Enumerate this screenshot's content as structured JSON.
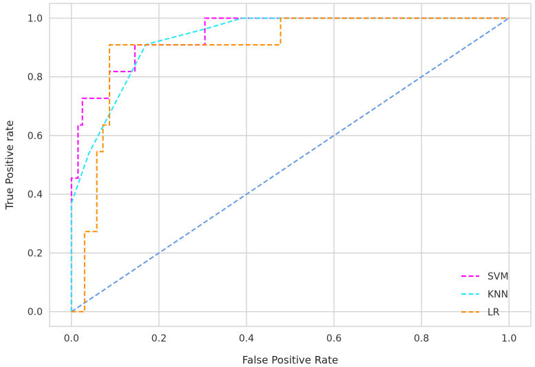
{
  "chart_data": {
    "type": "line",
    "title": "",
    "xlabel": "False Positive Rate",
    "ylabel": "True Positive rate",
    "xlim": [
      -0.05,
      1.05
    ],
    "ylim": [
      -0.05,
      1.05
    ],
    "xticks": [
      "0.0",
      "0.2",
      "0.4",
      "0.6",
      "0.8",
      "1.0"
    ],
    "yticks": [
      "0.0",
      "0.2",
      "0.4",
      "0.6",
      "0.8",
      "1.0"
    ],
    "grid": true,
    "legend_position": "lower-right",
    "series": [
      {
        "name": "SVM",
        "color": "#ff00ff",
        "style": "dashed",
        "x": [
          0.0,
          0.0,
          0.0,
          0.015,
          0.015,
          0.025,
          0.025,
          0.087,
          0.087,
          0.145,
          0.145,
          0.305,
          0.305,
          0.395,
          1.0
        ],
        "y": [
          0.0,
          0.364,
          0.455,
          0.455,
          0.636,
          0.636,
          0.727,
          0.727,
          0.818,
          0.818,
          0.909,
          0.909,
          1.0,
          1.0,
          1.0
        ]
      },
      {
        "name": "KNN",
        "color": "#26e6f2",
        "style": "dashed",
        "x": [
          0.0,
          0.0,
          0.04,
          0.17,
          0.31,
          0.39,
          1.0
        ],
        "y": [
          0.0,
          0.37,
          0.54,
          0.91,
          0.965,
          1.0,
          1.0
        ]
      },
      {
        "name": "LR",
        "color": "#ff8c00",
        "style": "dashed",
        "x": [
          0.0,
          0.03,
          0.03,
          0.058,
          0.058,
          0.072,
          0.072,
          0.087,
          0.087,
          0.478,
          0.478,
          1.0
        ],
        "y": [
          0.0,
          0.0,
          0.273,
          0.273,
          0.545,
          0.545,
          0.636,
          0.636,
          0.909,
          0.909,
          1.0,
          1.0
        ]
      },
      {
        "color": "#6699e6",
        "style": "dashed",
        "x": [
          0.0,
          1.0
        ],
        "y": [
          0.0,
          1.0
        ]
      }
    ]
  }
}
